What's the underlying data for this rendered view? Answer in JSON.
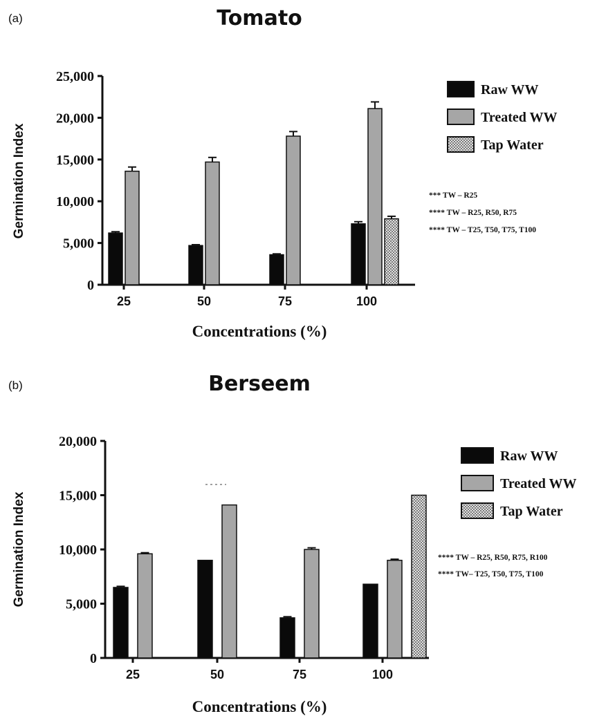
{
  "chart_data": [
    {
      "type": "bar",
      "panel_label": "(a)",
      "title": "Tomato",
      "xlabel": "Concentrations (%)",
      "ylabel": "Germination Index",
      "ylim": [
        0,
        25000
      ],
      "ytick_labels": [
        "0",
        "5,000",
        "10,000",
        "15,000",
        "20,000",
        "25,000"
      ],
      "categories": [
        "25",
        "50",
        "75",
        "100"
      ],
      "series": [
        {
          "name": "Raw WW",
          "color": "#0a0a0a",
          "pattern": "solid",
          "values": [
            6200,
            4700,
            3600,
            7300
          ],
          "errors": [
            150,
            100,
            100,
            250
          ]
        },
        {
          "name": "Treated WW",
          "color": "#a6a6a6",
          "pattern": "solid",
          "values": [
            13600,
            14700,
            17800,
            21100
          ],
          "errors": [
            500,
            550,
            550,
            800
          ]
        },
        {
          "name": "Tap Water",
          "color": "#d0d0d0",
          "pattern": "checker",
          "values": [
            null,
            null,
            null,
            7900
          ],
          "errors": [
            null,
            null,
            null,
            300
          ]
        }
      ],
      "legend_position": "right",
      "annotations": [
        "*** TW – R25",
        "**** TW – R25, R50, R75",
        "**** TW – T25, T50, T75, T100"
      ],
      "grid": false
    },
    {
      "type": "bar",
      "panel_label": "(b)",
      "title": "Berseem",
      "xlabel": "Concentrations (%)",
      "ylabel": "Germination Index",
      "ylim": [
        0,
        20000
      ],
      "ytick_labels": [
        "0",
        "5,000",
        "10,000",
        "15,000",
        "20,000"
      ],
      "categories": [
        "25",
        "50",
        "75",
        "100"
      ],
      "series": [
        {
          "name": "Raw WW",
          "color": "#0a0a0a",
          "pattern": "solid",
          "values": [
            6500,
            9000,
            3700,
            6800
          ],
          "errors": [
            100,
            0,
            100,
            0
          ]
        },
        {
          "name": "Treated WW",
          "color": "#a6a6a6",
          "pattern": "solid",
          "values": [
            9600,
            14100,
            10000,
            9000
          ],
          "errors": [
            100,
            0,
            150,
            100
          ]
        },
        {
          "name": "Tap Water",
          "color": "#d0d0d0",
          "pattern": "checker",
          "values": [
            null,
            null,
            null,
            15000
          ],
          "errors": [
            null,
            null,
            null,
            0
          ]
        }
      ],
      "legend_position": "right",
      "annotations": [
        "**** TW – R25, R50, R75, R100",
        "**** TW– T25, T50, T75, T100"
      ],
      "grid": false
    }
  ]
}
